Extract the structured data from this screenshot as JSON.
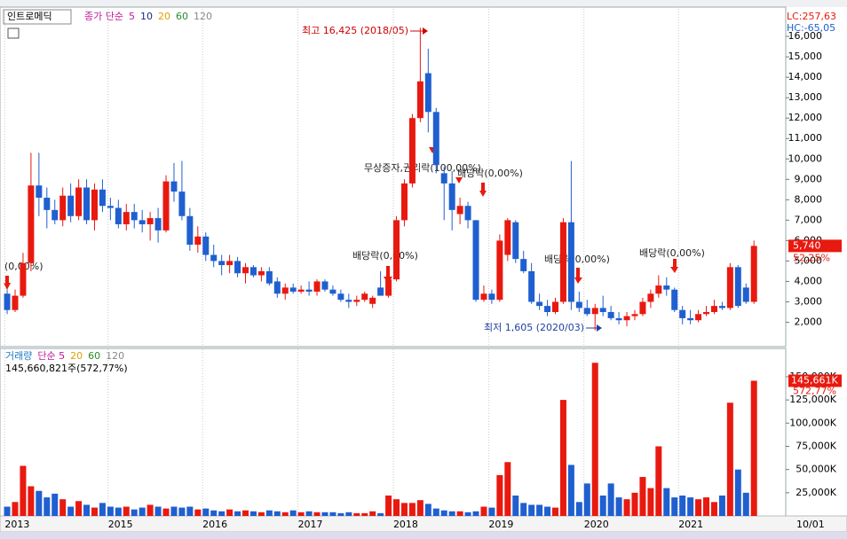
{
  "chart_data": {
    "type": "candlestick",
    "title": "인트로메딕",
    "price_legend": [
      {
        "text": "종가 단순",
        "color": "#c0189a"
      },
      {
        "text": "5",
        "color": "#c0189a"
      },
      {
        "text": "10",
        "color": "#1a2a80"
      },
      {
        "text": "20",
        "color": "#e0a000"
      },
      {
        "text": "60",
        "color": "#2a8a2a"
      },
      {
        "text": "120",
        "color": "#888888"
      }
    ],
    "volume_legend": [
      {
        "text": "거래량",
        "color": "#1a7ac0"
      },
      {
        "text": "단순 5",
        "color": "#c0189a"
      },
      {
        "text": "20",
        "color": "#e0a000"
      },
      {
        "text": "60",
        "color": "#2a8a2a"
      },
      {
        "text": "120",
        "color": "#888888"
      }
    ],
    "volume_info": "145,660,821주(572,77%)",
    "lc_label": "LC:257,63",
    "hc_label": "HC:-65,05",
    "last_price": {
      "value": 5740,
      "label": "5,740"
    },
    "last_price_change": "52,25%",
    "last_volume": {
      "value": 145661,
      "label": "145,661K"
    },
    "last_volume_change": "572,77%",
    "last_date": "10/01",
    "annotations": {
      "high": "최고 16,425 (2018/05)",
      "low": "최저 1,605 (2020/03)",
      "bonus": "무상증자,권리락(100,00%)",
      "div_left": "(0,00%)",
      "div_2018": "배당락(0,00%)",
      "div_2019": "배당락(0,00%)",
      "div_2020": "배당락(0,00%)",
      "div_2021": "배당락(0,00%)"
    },
    "up_color": "#e8190f",
    "down_color": "#1f5fd0",
    "xlim": [
      -0.9,
      98
    ],
    "xticks": [
      {
        "value": -0.3,
        "label": "2013"
      },
      {
        "value": 12.7,
        "label": "2015"
      },
      {
        "value": 24.6,
        "label": "2016"
      },
      {
        "value": 36.6,
        "label": "2017"
      },
      {
        "value": 48.6,
        "label": "2018"
      },
      {
        "value": 60.6,
        "label": "2019"
      },
      {
        "value": 72.6,
        "label": "2020"
      },
      {
        "value": 84.5,
        "label": "2021"
      }
    ],
    "ylim": [
      850,
      17350
    ],
    "yticks": [
      {
        "value": 2000,
        "label": "2,000"
      },
      {
        "value": 3000,
        "label": "3,000"
      },
      {
        "value": 4000,
        "label": "4,000"
      },
      {
        "value": 5000,
        "label": "5,000"
      },
      {
        "value": 6000,
        "label": "6,000"
      },
      {
        "value": 7000,
        "label": "7,000"
      },
      {
        "value": 8000,
        "label": "8,000"
      },
      {
        "value": 9000,
        "label": "9,000"
      },
      {
        "value": 10000,
        "label": "10,000"
      },
      {
        "value": 11000,
        "label": "11,000"
      },
      {
        "value": 12000,
        "label": "12,000"
      },
      {
        "value": 13000,
        "label": "13,000"
      },
      {
        "value": 14000,
        "label": "14,000"
      },
      {
        "value": 15000,
        "label": "15,000"
      },
      {
        "value": 16000,
        "label": "16,000"
      }
    ],
    "vol_ylim": [
      0,
      170000
    ],
    "vol_yticks": [
      {
        "value": 25000,
        "label": "25,000K"
      },
      {
        "value": 50000,
        "label": "50,000K"
      },
      {
        "value": 75000,
        "label": "75,000K"
      },
      {
        "value": 100000,
        "label": "100,000K"
      },
      {
        "value": 125000,
        "label": "125,000K"
      },
      {
        "value": 150000,
        "label": "150,000K"
      }
    ],
    "open": [
      3400,
      2600,
      3300,
      4900,
      8700,
      8100,
      7500,
      7000,
      8200,
      7200,
      8600,
      7000,
      8500,
      7700,
      7600,
      6800,
      7400,
      7000,
      6800,
      7100,
      6500,
      8900,
      8400,
      7200,
      5800,
      6200,
      5300,
      5000,
      4800,
      5000,
      4400,
      4700,
      4300,
      4500,
      4000,
      3400,
      3700,
      3500,
      3600,
      3500,
      4000,
      3600,
      3400,
      3100,
      3000,
      3100,
      2900,
      3700,
      3300,
      4100,
      7000,
      8800,
      12000,
      14200,
      12300,
      9300,
      8800,
      7300,
      7700,
      7000,
      3100,
      3400,
      3100,
      5300,
      6900,
      5100,
      4500,
      3000,
      2800,
      2500,
      3000,
      6900,
      3000,
      2700,
      2400,
      2700,
      2500,
      2200,
      2100,
      2300,
      2400,
      3000,
      3400,
      3800,
      3600,
      2600,
      2200,
      2100,
      2400,
      2500,
      2800,
      2700,
      4700,
      3700,
      3000
    ],
    "high": [
      3600,
      3600,
      5400,
      10300,
      10300,
      8600,
      8000,
      8600,
      8800,
      9000,
      9000,
      8800,
      9000,
      8100,
      8000,
      7800,
      7800,
      7500,
      7400,
      7600,
      9200,
      9800,
      9900,
      7600,
      6700,
      6400,
      5800,
      5300,
      5300,
      5200,
      4900,
      4800,
      4700,
      4700,
      4200,
      3900,
      3900,
      3800,
      4000,
      4100,
      4100,
      3800,
      3600,
      3400,
      3300,
      3500,
      3300,
      4500,
      4200,
      7200,
      9000,
      12200,
      16425,
      15400,
      12500,
      9600,
      9400,
      8100,
      7900,
      7000,
      3800,
      3600,
      6300,
      7100,
      7000,
      5500,
      4900,
      3400,
      3100,
      3200,
      7100,
      9900,
      3500,
      3100,
      2900,
      3300,
      2800,
      2500,
      2500,
      2600,
      3200,
      3600,
      4300,
      4200,
      3700,
      2800,
      2600,
      2600,
      2800,
      3100,
      3000,
      4900,
      4800,
      3900,
      6000
    ],
    "low": [
      2400,
      2500,
      3200,
      4500,
      7200,
      6600,
      6800,
      6700,
      6900,
      7000,
      6800,
      6500,
      7400,
      7000,
      6600,
      6500,
      6600,
      6400,
      6000,
      5900,
      6400,
      7900,
      7000,
      5500,
      5400,
      5000,
      4700,
      4300,
      4400,
      4200,
      3900,
      4200,
      4000,
      3800,
      3200,
      3100,
      3400,
      3400,
      3300,
      3300,
      3500,
      3300,
      3000,
      2700,
      2800,
      3000,
      2700,
      3300,
      3200,
      4000,
      6700,
      8600,
      11800,
      11300,
      9300,
      7000,
      6500,
      6800,
      6600,
      3000,
      3000,
      2900,
      3000,
      5000,
      4900,
      4400,
      2900,
      2600,
      2300,
      2400,
      2900,
      2600,
      2500,
      2300,
      1605,
      2300,
      2100,
      1900,
      1800,
      2100,
      2300,
      2700,
      3200,
      3300,
      2500,
      1900,
      1900,
      2000,
      2300,
      2400,
      2600,
      2600,
      2700,
      2900,
      2900
    ],
    "close": [
      2600,
      3300,
      4900,
      8700,
      8100,
      7500,
      7000,
      8200,
      7200,
      8600,
      7000,
      8500,
      7700,
      7600,
      6800,
      7400,
      7000,
      6800,
      7100,
      6500,
      8900,
      8400,
      7200,
      5800,
      6200,
      5300,
      5000,
      4800,
      5000,
      4400,
      4700,
      4300,
      4500,
      3900,
      3400,
      3700,
      3500,
      3600,
      3500,
      4000,
      3600,
      3400,
      3100,
      3000,
      3100,
      3400,
      3200,
      3300,
      4100,
      7000,
      8800,
      12000,
      13800,
      12300,
      9700,
      8800,
      7500,
      7700,
      7000,
      3100,
      3400,
      3100,
      6000,
      7000,
      5100,
      4500,
      3000,
      2800,
      2500,
      3000,
      6900,
      3000,
      2700,
      2400,
      2700,
      2500,
      2200,
      2100,
      2300,
      2400,
      3000,
      3400,
      3800,
      3600,
      2600,
      2200,
      2100,
      2400,
      2500,
      2800,
      2700,
      4700,
      2800,
      3000,
      5740
    ],
    "volume": [
      10000,
      15000,
      54000,
      32000,
      27000,
      20000,
      24000,
      18000,
      10000,
      16000,
      12000,
      9000,
      14000,
      10000,
      9000,
      10000,
      7000,
      9000,
      12000,
      10000,
      8000,
      10000,
      9000,
      10000,
      7000,
      8000,
      6000,
      5000,
      7000,
      5000,
      6000,
      5000,
      4000,
      6000,
      5000,
      4000,
      6000,
      4000,
      5000,
      4000,
      4000,
      4000,
      3000,
      4000,
      3000,
      3000,
      5000,
      3000,
      22000,
      18000,
      14000,
      14000,
      17000,
      13000,
      8000,
      6000,
      5000,
      5000,
      4000,
      5000,
      10000,
      9000,
      44000,
      58000,
      22000,
      14000,
      12000,
      12000,
      10000,
      9000,
      125000,
      55000,
      15000,
      35000,
      165000,
      22000,
      35000,
      20000,
      18000,
      25000,
      42000,
      30000,
      75000,
      30000,
      20000,
      22000,
      20000,
      18000,
      20000,
      15000,
      22000,
      122000,
      50000,
      25000,
      145661
    ]
  }
}
